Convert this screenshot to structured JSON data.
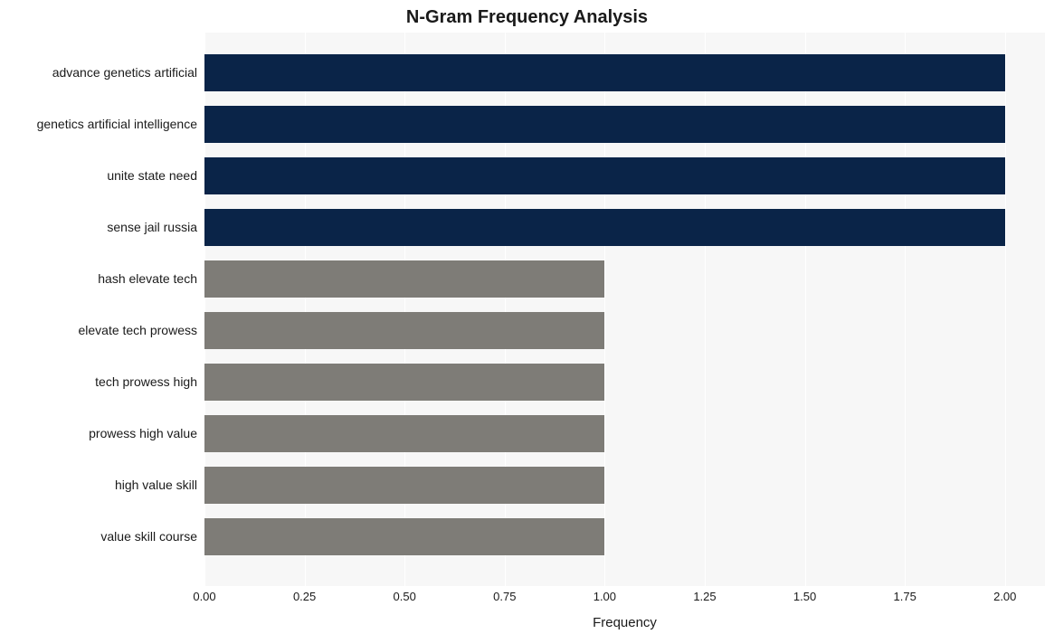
{
  "ngram_chart": {
    "type": "bar",
    "orientation": "horizontal",
    "title": "N-Gram Frequency Analysis",
    "title_fontsize": 20,
    "title_fontweight": "bold",
    "xlabel": "Frequency",
    "xlabel_fontsize": 15,
    "ylabel": "",
    "background_color": "#ffffff",
    "plot_background_color": "#f7f7f7",
    "grid_color": "#ffffff",
    "text_color": "#1a1a1a",
    "ytick_fontsize": 14,
    "xtick_fontsize": 13,
    "xlim": [
      0,
      2.1
    ],
    "xticks": [
      0.0,
      0.25,
      0.5,
      0.75,
      1.0,
      1.25,
      1.5,
      1.75,
      2.0
    ],
    "xtick_labels": [
      "0.00",
      "0.25",
      "0.50",
      "0.75",
      "1.00",
      "1.25",
      "1.50",
      "1.75",
      "2.00"
    ],
    "bar_height_ratio": 0.72,
    "palette_high": "#0a2448",
    "palette_low": "#7e7c77",
    "rows": [
      {
        "label": "advance genetics artificial",
        "value": 2,
        "color": "#0a2448"
      },
      {
        "label": "genetics artificial intelligence",
        "value": 2,
        "color": "#0a2448"
      },
      {
        "label": "unite state need",
        "value": 2,
        "color": "#0a2448"
      },
      {
        "label": "sense jail russia",
        "value": 2,
        "color": "#0a2448"
      },
      {
        "label": "hash elevate tech",
        "value": 1,
        "color": "#7e7c77"
      },
      {
        "label": "elevate tech prowess",
        "value": 1,
        "color": "#7e7c77"
      },
      {
        "label": "tech prowess high",
        "value": 1,
        "color": "#7e7c77"
      },
      {
        "label": "prowess high value",
        "value": 1,
        "color": "#7e7c77"
      },
      {
        "label": "high value skill",
        "value": 1,
        "color": "#7e7c77"
      },
      {
        "label": "value skill course",
        "value": 1,
        "color": "#7e7c77"
      }
    ]
  }
}
